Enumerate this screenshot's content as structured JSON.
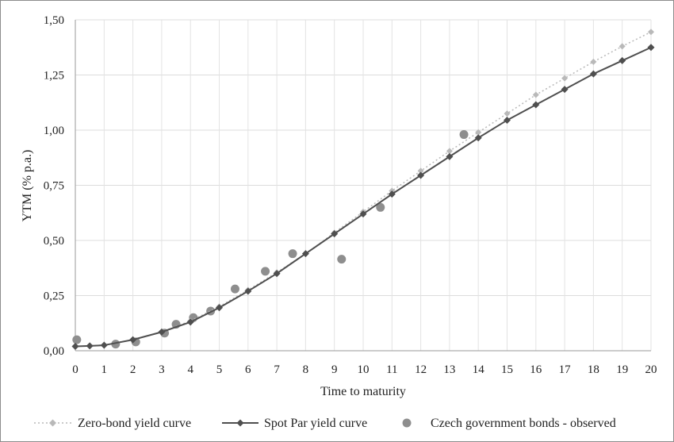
{
  "chart_data": {
    "type": "line",
    "title": "",
    "xlabel": "Time to maturity",
    "ylabel": "YTM (% p.a.)",
    "xlim": [
      0,
      20
    ],
    "ylim": [
      0,
      1.5
    ],
    "x_ticks": [
      "0",
      "1",
      "2",
      "3",
      "4",
      "5",
      "6",
      "7",
      "8",
      "9",
      "10",
      "11",
      "12",
      "13",
      "14",
      "15",
      "16",
      "17",
      "18",
      "19",
      "20"
    ],
    "y_ticks": [
      "0,00",
      "0,25",
      "0,50",
      "0,75",
      "1,00",
      "1,25",
      "1,50"
    ],
    "y_tick_values": [
      0,
      0.25,
      0.5,
      0.75,
      1.0,
      1.25,
      1.5
    ],
    "grid": true,
    "legend_position": "bottom",
    "series": [
      {
        "name": "Zero-bond yield curve",
        "style": "dotted-line-diamond",
        "color": "#b9b9b9",
        "x": [
          0,
          0.5,
          1,
          2,
          3,
          4,
          5,
          6,
          7,
          8,
          9,
          10,
          11,
          12,
          13,
          14,
          15,
          16,
          17,
          18,
          19,
          20
        ],
        "y": [
          0.02,
          0.022,
          0.026,
          0.05,
          0.085,
          0.135,
          0.2,
          0.275,
          0.355,
          0.44,
          0.535,
          0.63,
          0.725,
          0.815,
          0.905,
          0.99,
          1.075,
          1.16,
          1.235,
          1.31,
          1.38,
          1.445
        ]
      },
      {
        "name": "Spot Par yield curve",
        "style": "solid-line-diamond",
        "color": "#4f4f4f",
        "x": [
          0,
          0.5,
          1,
          2,
          3,
          4,
          5,
          6,
          7,
          8,
          9,
          10,
          11,
          12,
          13,
          14,
          15,
          16,
          17,
          18,
          19,
          20
        ],
        "y": [
          0.02,
          0.022,
          0.025,
          0.05,
          0.085,
          0.13,
          0.195,
          0.27,
          0.35,
          0.44,
          0.53,
          0.62,
          0.71,
          0.795,
          0.88,
          0.965,
          1.045,
          1.115,
          1.185,
          1.255,
          1.315,
          1.375
        ]
      },
      {
        "name": "Czech government bonds - observed",
        "style": "scatter-circle",
        "color": "#8e8e8e",
        "x": [
          0.05,
          1.4,
          2.1,
          3.1,
          3.5,
          4.1,
          4.7,
          5.55,
          6.6,
          7.55,
          9.25,
          10.6,
          13.5
        ],
        "y": [
          0.05,
          0.03,
          0.04,
          0.08,
          0.12,
          0.15,
          0.18,
          0.28,
          0.36,
          0.44,
          0.415,
          0.65,
          0.98
        ]
      }
    ]
  }
}
